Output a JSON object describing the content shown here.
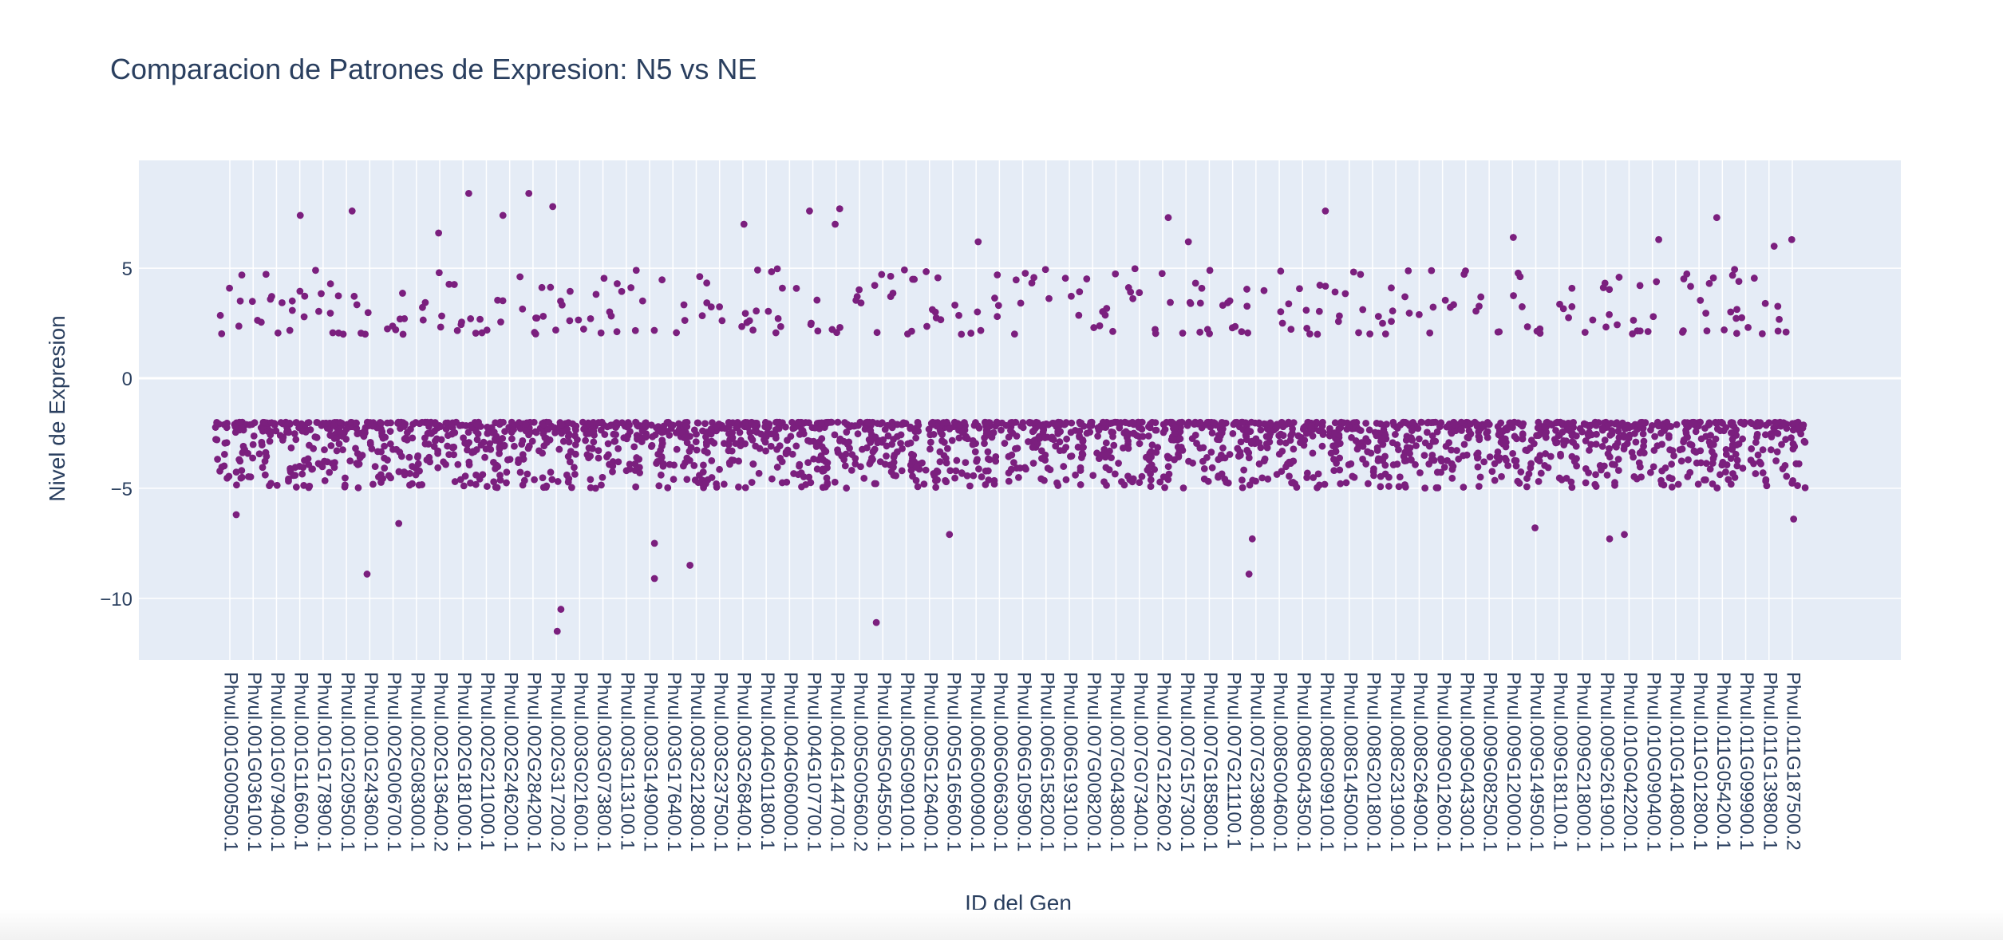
{
  "chart_data": {
    "type": "scatter",
    "title": "Comparacion de Patrones de Expresion: N5 vs NE",
    "xlabel": "ID del Gen",
    "ylabel": "Nivel de Expresion",
    "ylim": [
      -12.8,
      9.9
    ],
    "y_ticks": [
      5,
      0,
      -5,
      -10
    ],
    "y_tick_labels": [
      "5",
      "0",
      "−5",
      "−10"
    ],
    "grid": true,
    "legend": "none",
    "categories": [
      "Phvul.001G000500.1",
      "Phvul.001G036100.1",
      "Phvul.001G079400.1",
      "Phvul.001G116600.1",
      "Phvul.001G178900.1",
      "Phvul.001G209500.1",
      "Phvul.001G243600.1",
      "Phvul.002G006700.1",
      "Phvul.002G083000.1",
      "Phvul.002G136400.2",
      "Phvul.002G181000.1",
      "Phvul.002G211000.1",
      "Phvul.002G246200.1",
      "Phvul.002G284200.1",
      "Phvul.002G317200.2",
      "Phvul.003G021600.1",
      "Phvul.003G073800.1",
      "Phvul.003G113100.1",
      "Phvul.003G149000.1",
      "Phvul.003G176400.1",
      "Phvul.003G212800.1",
      "Phvul.003G237500.1",
      "Phvul.003G268400.1",
      "Phvul.004G011800.1",
      "Phvul.004G060000.1",
      "Phvul.004G107700.1",
      "Phvul.004G144700.1",
      "Phvul.005G005600.2",
      "Phvul.005G045500.1",
      "Phvul.005G090100.1",
      "Phvul.005G126400.1",
      "Phvul.005G165600.1",
      "Phvul.006G000900.1",
      "Phvul.006G066300.1",
      "Phvul.006G105900.1",
      "Phvul.006G158200.1",
      "Phvul.006G193100.1",
      "Phvul.007G008200.1",
      "Phvul.007G043800.1",
      "Phvul.007G073400.1",
      "Phvul.007G122600.2",
      "Phvul.007G157300.1",
      "Phvul.007G185800.1",
      "Phvul.007G211100.1",
      "Phvul.007G239800.1",
      "Phvul.008G004600.1",
      "Phvul.008G043500.1",
      "Phvul.008G099100.1",
      "Phvul.008G145000.1",
      "Phvul.008G201800.1",
      "Phvul.008G231900.1",
      "Phvul.008G264900.1",
      "Phvul.009G012600.1",
      "Phvul.009G043300.1",
      "Phvul.009G082500.1",
      "Phvul.009G120000.1",
      "Phvul.009G149500.1",
      "Phvul.009G181100.1",
      "Phvul.009G218000.1",
      "Phvul.009G261900.1",
      "Phvul.010G042200.1",
      "Phvul.010G090400.1",
      "Phvul.010G140800.1",
      "Phvul.011G012800.1",
      "Phvul.011G054200.1",
      "Phvul.011G099900.1",
      "Phvul.011G139800.1",
      "Phvul.011G187500.2"
    ],
    "series": [
      {
        "color": "#7b1f7e",
        "points_per_category": 34,
        "high_range": [
          2.0,
          5.0
        ],
        "low_range": [
          -2.0,
          -5.0
        ],
        "outliers": [
          {
            "x": "Phvul.001G000500.1",
            "y": -6.2
          },
          {
            "x": "Phvul.001G116600.1",
            "y": 7.4
          },
          {
            "x": "Phvul.001G209500.1",
            "y": 7.6
          },
          {
            "x": "Phvul.001G243600.1",
            "y": -8.9
          },
          {
            "x": "Phvul.002G006700.1",
            "y": -6.6
          },
          {
            "x": "Phvul.002G136400.2",
            "y": 6.6
          },
          {
            "x": "Phvul.002G181000.1",
            "y": 8.4
          },
          {
            "x": "Phvul.002G246200.1",
            "y": 7.4
          },
          {
            "x": "Phvul.002G284200.1",
            "y": 8.4
          },
          {
            "x": "Phvul.002G317200.2",
            "y": 7.8
          },
          {
            "x": "Phvul.002G317200.2",
            "y": -10.5
          },
          {
            "x": "Phvul.002G317200.2",
            "y": -11.5
          },
          {
            "x": "Phvul.003G149000.1",
            "y": -9.1
          },
          {
            "x": "Phvul.003G149000.1",
            "y": -7.5
          },
          {
            "x": "Phvul.003G212800.1",
            "y": -8.5
          },
          {
            "x": "Phvul.003G268400.1",
            "y": 7.0
          },
          {
            "x": "Phvul.004G107700.1",
            "y": 7.6
          },
          {
            "x": "Phvul.004G144700.1",
            "y": 7.7
          },
          {
            "x": "Phvul.004G144700.1",
            "y": 7.0
          },
          {
            "x": "Phvul.005G045500.1",
            "y": -11.1
          },
          {
            "x": "Phvul.005G165600.1",
            "y": -7.1
          },
          {
            "x": "Phvul.006G000900.1",
            "y": 6.2
          },
          {
            "x": "Phvul.007G122600.2",
            "y": 7.3
          },
          {
            "x": "Phvul.007G157300.1",
            "y": 6.2
          },
          {
            "x": "Phvul.007G239800.1",
            "y": -7.3
          },
          {
            "x": "Phvul.007G239800.1",
            "y": -8.9
          },
          {
            "x": "Phvul.008G099100.1",
            "y": 7.6
          },
          {
            "x": "Phvul.009G120000.1",
            "y": 6.4
          },
          {
            "x": "Phvul.009G149500.1",
            "y": -6.8
          },
          {
            "x": "Phvul.009G261900.1",
            "y": -7.3
          },
          {
            "x": "Phvul.010G042200.1",
            "y": -7.1
          },
          {
            "x": "Phvul.010G090400.1",
            "y": 6.3
          },
          {
            "x": "Phvul.011G054200.1",
            "y": 7.3
          },
          {
            "x": "Phvul.011G139800.1",
            "y": 6.0
          },
          {
            "x": "Phvul.011G187500.2",
            "y": -6.4
          },
          {
            "x": "Phvul.011G187500.2",
            "y": 6.3
          }
        ]
      }
    ]
  }
}
